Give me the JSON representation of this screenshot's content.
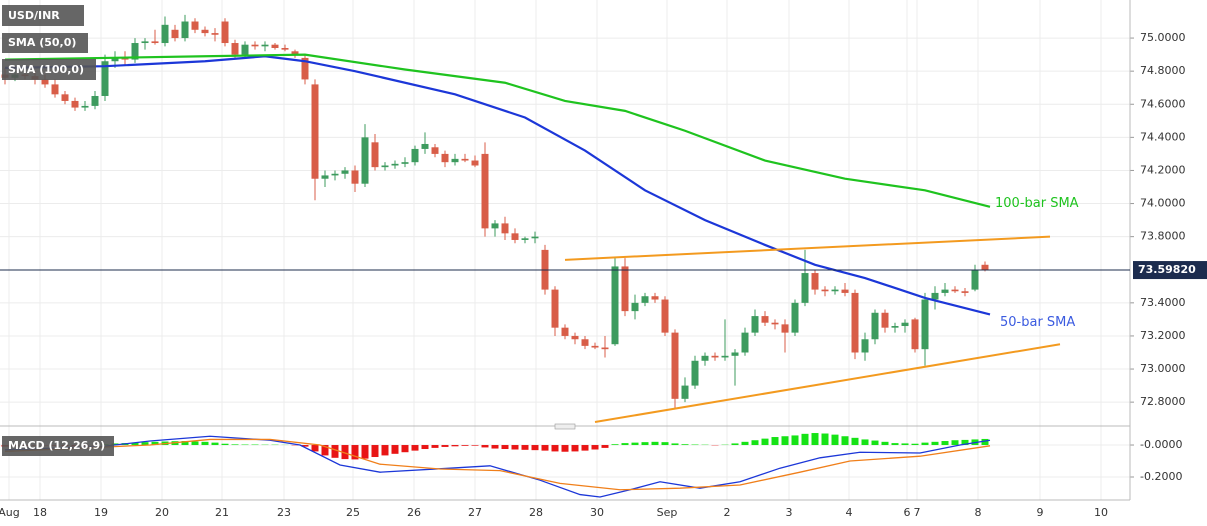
{
  "chart_data": {
    "type": "candlestick",
    "symbol": "USD/INR",
    "up_color": "#3d9b5e",
    "down_color": "#d85d48",
    "grid": true,
    "x": [
      0,
      1,
      2,
      3,
      4,
      5,
      6,
      7,
      8,
      9,
      10,
      11,
      12,
      13,
      14,
      15,
      16,
      17,
      18,
      19,
      20,
      21,
      22,
      23,
      24,
      25,
      26,
      27,
      28,
      29,
      30,
      31,
      32,
      33,
      34,
      35,
      36,
      37,
      38,
      39,
      40,
      41,
      42,
      43,
      44,
      45,
      46,
      47,
      48,
      49,
      50,
      51,
      52,
      53,
      54,
      55,
      56,
      57,
      58,
      59,
      60,
      61,
      62,
      63,
      64,
      65,
      66,
      67,
      68,
      69,
      70,
      71,
      72,
      73,
      74,
      75,
      76,
      77,
      78,
      79,
      80,
      81,
      82,
      83,
      84,
      85,
      86,
      87,
      88,
      89,
      90,
      91,
      92,
      93,
      94,
      95,
      96,
      97,
      98
    ],
    "ohlc": [
      [
        74.78,
        74.82,
        74.72,
        74.76
      ],
      [
        74.76,
        74.8,
        74.74,
        74.78
      ],
      [
        74.78,
        74.83,
        74.75,
        74.77
      ],
      [
        74.77,
        74.8,
        74.72,
        74.75
      ],
      [
        74.75,
        74.78,
        74.7,
        74.72
      ],
      [
        74.72,
        74.75,
        74.64,
        74.66
      ],
      [
        74.66,
        74.68,
        74.6,
        74.62
      ],
      [
        74.62,
        74.64,
        74.56,
        74.58
      ],
      [
        74.58,
        74.62,
        74.56,
        74.59
      ],
      [
        74.59,
        74.68,
        74.57,
        74.65
      ],
      [
        74.65,
        74.9,
        74.62,
        74.86
      ],
      [
        74.86,
        74.92,
        74.82,
        74.88
      ],
      [
        74.88,
        74.92,
        74.84,
        74.87
      ],
      [
        74.87,
        75.0,
        74.85,
        74.97
      ],
      [
        74.97,
        75.0,
        74.93,
        74.98
      ],
      [
        74.98,
        75.05,
        74.96,
        74.97
      ],
      [
        74.97,
        75.13,
        74.95,
        75.08
      ],
      [
        75.05,
        75.08,
        74.98,
        75.0
      ],
      [
        75.0,
        75.14,
        74.98,
        75.1
      ],
      [
        75.1,
        75.12,
        75.03,
        75.05
      ],
      [
        75.05,
        75.07,
        75.01,
        75.03
      ],
      [
        75.03,
        75.06,
        74.98,
        75.02
      ],
      [
        75.1,
        75.12,
        74.95,
        74.97
      ],
      [
        74.97,
        74.99,
        74.88,
        74.9
      ],
      [
        74.9,
        74.98,
        74.88,
        74.96
      ],
      [
        74.96,
        74.98,
        74.93,
        74.95
      ],
      [
        74.95,
        74.98,
        74.92,
        74.96
      ],
      [
        74.96,
        74.97,
        74.93,
        74.94
      ],
      [
        74.94,
        74.96,
        74.92,
        74.93
      ],
      [
        74.92,
        74.93,
        74.88,
        74.9
      ],
      [
        74.88,
        74.9,
        74.72,
        74.75
      ],
      [
        74.72,
        74.75,
        74.02,
        74.15
      ],
      [
        74.15,
        74.2,
        74.1,
        74.17
      ],
      [
        74.17,
        74.2,
        74.14,
        74.18
      ],
      [
        74.18,
        74.22,
        74.15,
        74.2
      ],
      [
        74.2,
        74.23,
        74.07,
        74.12
      ],
      [
        74.12,
        74.48,
        74.1,
        74.4
      ],
      [
        74.37,
        74.42,
        74.2,
        74.22
      ],
      [
        74.22,
        74.25,
        74.2,
        74.23
      ],
      [
        74.23,
        74.26,
        74.21,
        74.24
      ],
      [
        74.24,
        74.28,
        74.22,
        74.25
      ],
      [
        74.25,
        74.35,
        74.23,
        74.33
      ],
      [
        74.33,
        74.43,
        74.3,
        74.36
      ],
      [
        74.34,
        74.36,
        74.28,
        74.3
      ],
      [
        74.3,
        74.32,
        74.22,
        74.25
      ],
      [
        74.25,
        74.3,
        74.23,
        74.27
      ],
      [
        74.27,
        74.3,
        74.25,
        74.26
      ],
      [
        74.26,
        74.29,
        74.22,
        74.23
      ],
      [
        74.3,
        74.37,
        73.8,
        73.85
      ],
      [
        73.85,
        73.9,
        73.8,
        73.88
      ],
      [
        73.88,
        73.92,
        73.78,
        73.82
      ],
      [
        73.82,
        73.85,
        73.76,
        73.78
      ],
      [
        73.78,
        73.8,
        73.76,
        73.79
      ],
      [
        73.79,
        73.83,
        73.76,
        73.8
      ],
      [
        73.72,
        73.75,
        73.45,
        73.48
      ],
      [
        73.48,
        73.5,
        73.2,
        73.25
      ],
      [
        73.25,
        73.27,
        73.18,
        73.2
      ],
      [
        73.2,
        73.22,
        73.15,
        73.18
      ],
      [
        73.18,
        73.2,
        73.12,
        73.14
      ],
      [
        73.14,
        73.16,
        73.12,
        73.13
      ],
      [
        73.13,
        73.2,
        73.07,
        73.12
      ],
      [
        73.15,
        73.67,
        73.14,
        73.62
      ],
      [
        73.62,
        73.67,
        73.32,
        73.35
      ],
      [
        73.35,
        73.45,
        73.3,
        73.4
      ],
      [
        73.4,
        73.46,
        73.38,
        73.44
      ],
      [
        73.44,
        73.46,
        73.4,
        73.42
      ],
      [
        73.42,
        73.44,
        73.2,
        73.22
      ],
      [
        73.22,
        73.24,
        72.76,
        72.82
      ],
      [
        72.82,
        72.95,
        72.8,
        72.9
      ],
      [
        72.9,
        73.08,
        72.88,
        73.05
      ],
      [
        73.05,
        73.1,
        73.02,
        73.08
      ],
      [
        73.08,
        73.1,
        73.05,
        73.07
      ],
      [
        73.07,
        73.3,
        73.05,
        73.08
      ],
      [
        73.08,
        73.12,
        72.9,
        73.1
      ],
      [
        73.1,
        73.25,
        73.08,
        73.22
      ],
      [
        73.22,
        73.36,
        73.2,
        73.32
      ],
      [
        73.32,
        73.35,
        73.26,
        73.28
      ],
      [
        73.28,
        73.3,
        73.24,
        73.27
      ],
      [
        73.27,
        73.3,
        73.1,
        73.22
      ],
      [
        73.22,
        73.42,
        73.2,
        73.4
      ],
      [
        73.4,
        73.72,
        73.38,
        73.58
      ],
      [
        73.58,
        73.6,
        73.45,
        73.48
      ],
      [
        73.48,
        73.5,
        73.44,
        73.47
      ],
      [
        73.47,
        73.5,
        73.45,
        73.48
      ],
      [
        73.48,
        73.52,
        73.44,
        73.46
      ],
      [
        73.46,
        73.48,
        73.06,
        73.1
      ],
      [
        73.1,
        73.22,
        73.05,
        73.18
      ],
      [
        73.18,
        73.36,
        73.15,
        73.34
      ],
      [
        73.34,
        73.36,
        73.22,
        73.25
      ],
      [
        73.25,
        73.28,
        73.22,
        73.26
      ],
      [
        73.26,
        73.3,
        73.22,
        73.28
      ],
      [
        73.3,
        73.31,
        73.1,
        73.12
      ],
      [
        73.12,
        73.46,
        73.02,
        73.42
      ],
      [
        73.42,
        73.5,
        73.36,
        73.46
      ],
      [
        73.46,
        73.52,
        73.44,
        73.48
      ],
      [
        73.48,
        73.5,
        73.46,
        73.47
      ],
      [
        73.47,
        73.49,
        73.44,
        73.46
      ],
      [
        73.48,
        73.63,
        73.47,
        73.6
      ],
      [
        73.63,
        73.65,
        73.59,
        73.6
      ]
    ],
    "xlim": [
      -0.5,
      112.5
    ],
    "xticks": [
      {
        "value": 0.4,
        "label": "Aug"
      },
      {
        "value": 3.5,
        "label": "18"
      },
      {
        "value": 9.6,
        "label": "19"
      },
      {
        "value": 15.7,
        "label": "20"
      },
      {
        "value": 21.7,
        "label": "21"
      },
      {
        "value": 27.9,
        "label": "23"
      },
      {
        "value": 34.8,
        "label": "25"
      },
      {
        "value": 40.9,
        "label": "26"
      },
      {
        "value": 47,
        "label": "27"
      },
      {
        "value": 53.1,
        "label": "28"
      },
      {
        "value": 59.2,
        "label": "30"
      },
      {
        "value": 66.2,
        "label": "Sep"
      },
      {
        "value": 72.2,
        "label": "2"
      },
      {
        "value": 78.4,
        "label": "3"
      },
      {
        "value": 84.4,
        "label": "4"
      },
      {
        "value": 90.2,
        "label": "6"
      },
      {
        "value": 91.2,
        "label": "7"
      },
      {
        "value": 97.3,
        "label": "8"
      },
      {
        "value": 103.5,
        "label": "9"
      },
      {
        "value": 109.6,
        "label": "10"
      }
    ],
    "ylim": [
      72.68,
      75.23
    ],
    "yticks": [
      {
        "value": 75,
        "label": "75.0000"
      },
      {
        "value": 74.8,
        "label": "74.8000"
      },
      {
        "value": 74.6,
        "label": "74.6000"
      },
      {
        "value": 74.4,
        "label": "74.4000"
      },
      {
        "value": 74.2,
        "label": "74.2000"
      },
      {
        "value": 74,
        "label": "74.0000"
      },
      {
        "value": 73.8,
        "label": "73.8000"
      },
      {
        "value": 73.4,
        "label": "73.4000"
      },
      {
        "value": 73.2,
        "label": "73.2000"
      },
      {
        "value": 73,
        "label": "73.0000"
      },
      {
        "value": 72.8,
        "label": "72.8000"
      }
    ],
    "series": [
      {
        "name": "SMA (50,0)",
        "color": "#1c37d8",
        "x": [
          0,
          10,
          20,
          26,
          30,
          35,
          45,
          52,
          58,
          64,
          70,
          76,
          81,
          86,
          92,
          98.5
        ],
        "values": [
          74.82,
          74.83,
          74.86,
          74.89,
          74.86,
          74.8,
          74.66,
          74.52,
          74.32,
          74.08,
          73.9,
          73.75,
          73.63,
          73.55,
          73.43,
          73.33
        ]
      },
      {
        "name": "SMA (100,0)",
        "color": "#1fc31f",
        "x": [
          0,
          20,
          30,
          40,
          50,
          56,
          62,
          68,
          76,
          84,
          92,
          98.5
        ],
        "values": [
          74.87,
          74.89,
          74.9,
          74.81,
          74.73,
          74.62,
          74.56,
          74.44,
          74.26,
          74.15,
          74.08,
          73.98
        ]
      }
    ],
    "annotations": [
      {
        "text": "100-bar SMA",
        "color": "#1fc31f",
        "x": 99,
        "y": 74.0
      },
      {
        "text": "50-bar SMA",
        "color": "#3b5be0",
        "x": 99.5,
        "y": 73.28
      }
    ],
    "trendlines": [
      {
        "color": "#f39a1f",
        "x": [
          56,
          104.5
        ],
        "values": [
          73.66,
          73.8
        ]
      },
      {
        "color": "#f39a1f",
        "x": [
          59,
          105.5
        ],
        "values": [
          72.68,
          73.15
        ]
      }
    ],
    "last_price": {
      "value": 73.5982,
      "label": "73.59820",
      "color": "#1c2c4e"
    },
    "macd": {
      "name": "MACD (12,26,9)",
      "ylim": [
        -0.344,
        0.094
      ],
      "yticks": [
        {
          "value": 0,
          "label": "-0.0000"
        },
        {
          "value": -0.2,
          "label": "-0.2000"
        }
      ],
      "up_color": "#16e316",
      "down_color": "#e81515",
      "histogram": [
        -0.01,
        -0.008,
        -0.005,
        -0.004,
        -0.003,
        -0.005,
        -0.006,
        -0.008,
        -0.006,
        -0.003,
        0.005,
        0.01,
        0.012,
        0.015,
        0.018,
        0.02,
        0.022,
        0.024,
        0.025,
        0.022,
        0.02,
        0.015,
        0.008,
        0.004,
        0.003,
        0.003,
        0.002,
        0.002,
        0.001,
        -0.002,
        -0.01,
        -0.04,
        -0.065,
        -0.08,
        -0.088,
        -0.09,
        -0.085,
        -0.075,
        -0.065,
        -0.055,
        -0.045,
        -0.035,
        -0.025,
        -0.018,
        -0.012,
        -0.008,
        -0.005,
        -0.004,
        -0.015,
        -0.022,
        -0.025,
        -0.028,
        -0.03,
        -0.032,
        -0.035,
        -0.04,
        -0.042,
        -0.04,
        -0.035,
        -0.028,
        -0.018,
        0.005,
        0.012,
        0.015,
        0.018,
        0.02,
        0.018,
        0.01,
        0.005,
        0.003,
        0.002,
        -0.002,
        0.002,
        0.01,
        0.02,
        0.03,
        0.04,
        0.05,
        0.055,
        0.06,
        0.07,
        0.075,
        0.072,
        0.065,
        0.055,
        0.045,
        0.035,
        0.028,
        0.02,
        0.012,
        0.01,
        0.008,
        0.015,
        0.02,
        0.025,
        0.03,
        0.032,
        0.035,
        0.038
      ],
      "macd_line": {
        "color": "#1c37d8",
        "x": [
          0,
          9.5,
          14.5,
          20.5,
          26.5,
          29.5,
          33.5,
          37.5,
          44.5,
          48.5,
          53.5,
          57.5,
          59.5,
          62.5,
          65.5,
          69.5,
          73.5,
          77.5,
          81.5,
          85.5,
          91.5,
          95.5,
          98.5
        ],
        "values": [
          -0.03,
          -0.01,
          0.025,
          0.055,
          0.03,
          0,
          -0.125,
          -0.17,
          -0.145,
          -0.13,
          -0.22,
          -0.31,
          -0.325,
          -0.28,
          -0.23,
          -0.27,
          -0.23,
          -0.145,
          -0.08,
          -0.045,
          -0.05,
          0,
          0.03
        ]
      },
      "signal_line": {
        "color": "#f07f1a",
        "x": [
          0,
          14.5,
          20.5,
          26.5,
          31.5,
          37.5,
          43.5,
          49.5,
          55.5,
          61.5,
          67.5,
          73.5,
          79.5,
          84.5,
          91.5,
          98.5
        ],
        "values": [
          -0.04,
          0,
          0.035,
          0.035,
          0,
          -0.12,
          -0.15,
          -0.16,
          -0.24,
          -0.28,
          -0.27,
          -0.25,
          -0.17,
          -0.1,
          -0.07,
          -0.005
        ]
      }
    }
  }
}
